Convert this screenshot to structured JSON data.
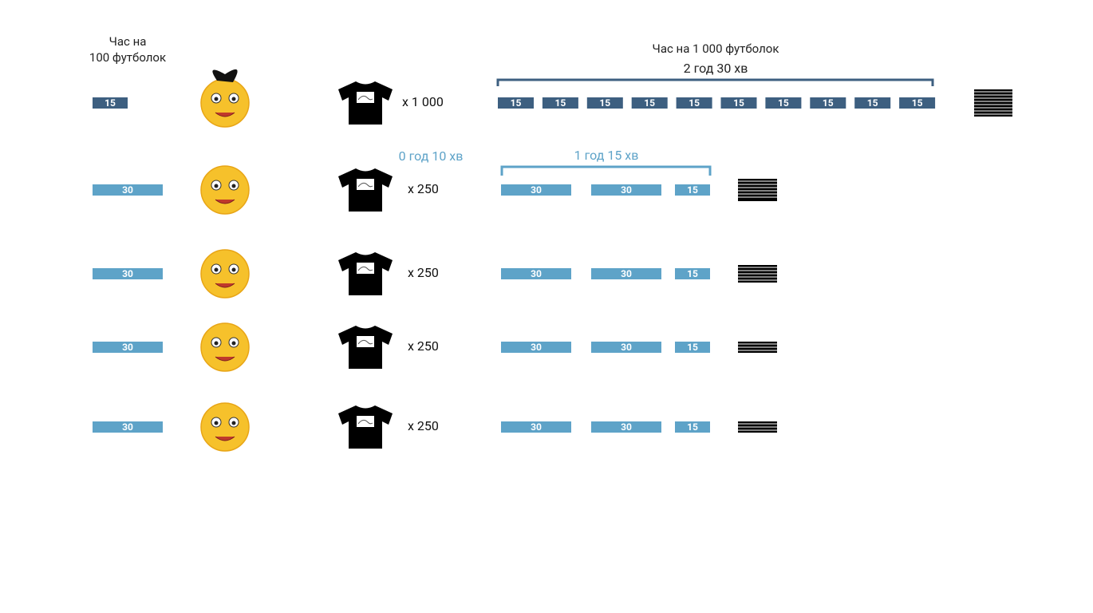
{
  "header": {
    "time_label": [
      "Час на",
      "100 футболок"
    ]
  },
  "total": {
    "title": "Час на 1 000 футболок",
    "duration": "2 год 30 хв"
  },
  "team": {
    "start_delay": "0 год 10 хв",
    "duration": "1 год 15 хв"
  },
  "rows": [
    {
      "block": "15",
      "quantity": "x 1 000",
      "segments": [
        "15",
        "15",
        "15",
        "15",
        "15",
        "15",
        "15",
        "15",
        "15",
        "15"
      ]
    },
    {
      "block": "30",
      "quantity": "x 250",
      "segments": [
        "30",
        "30",
        "15"
      ]
    },
    {
      "block": "30",
      "quantity": "x 250",
      "segments": [
        "30",
        "30",
        "15"
      ]
    },
    {
      "block": "30",
      "quantity": "x 250",
      "segments": [
        "30",
        "30",
        "15"
      ]
    },
    {
      "block": "30",
      "quantity": "x 250",
      "segments": [
        "30",
        "30",
        "15"
      ]
    }
  ]
}
